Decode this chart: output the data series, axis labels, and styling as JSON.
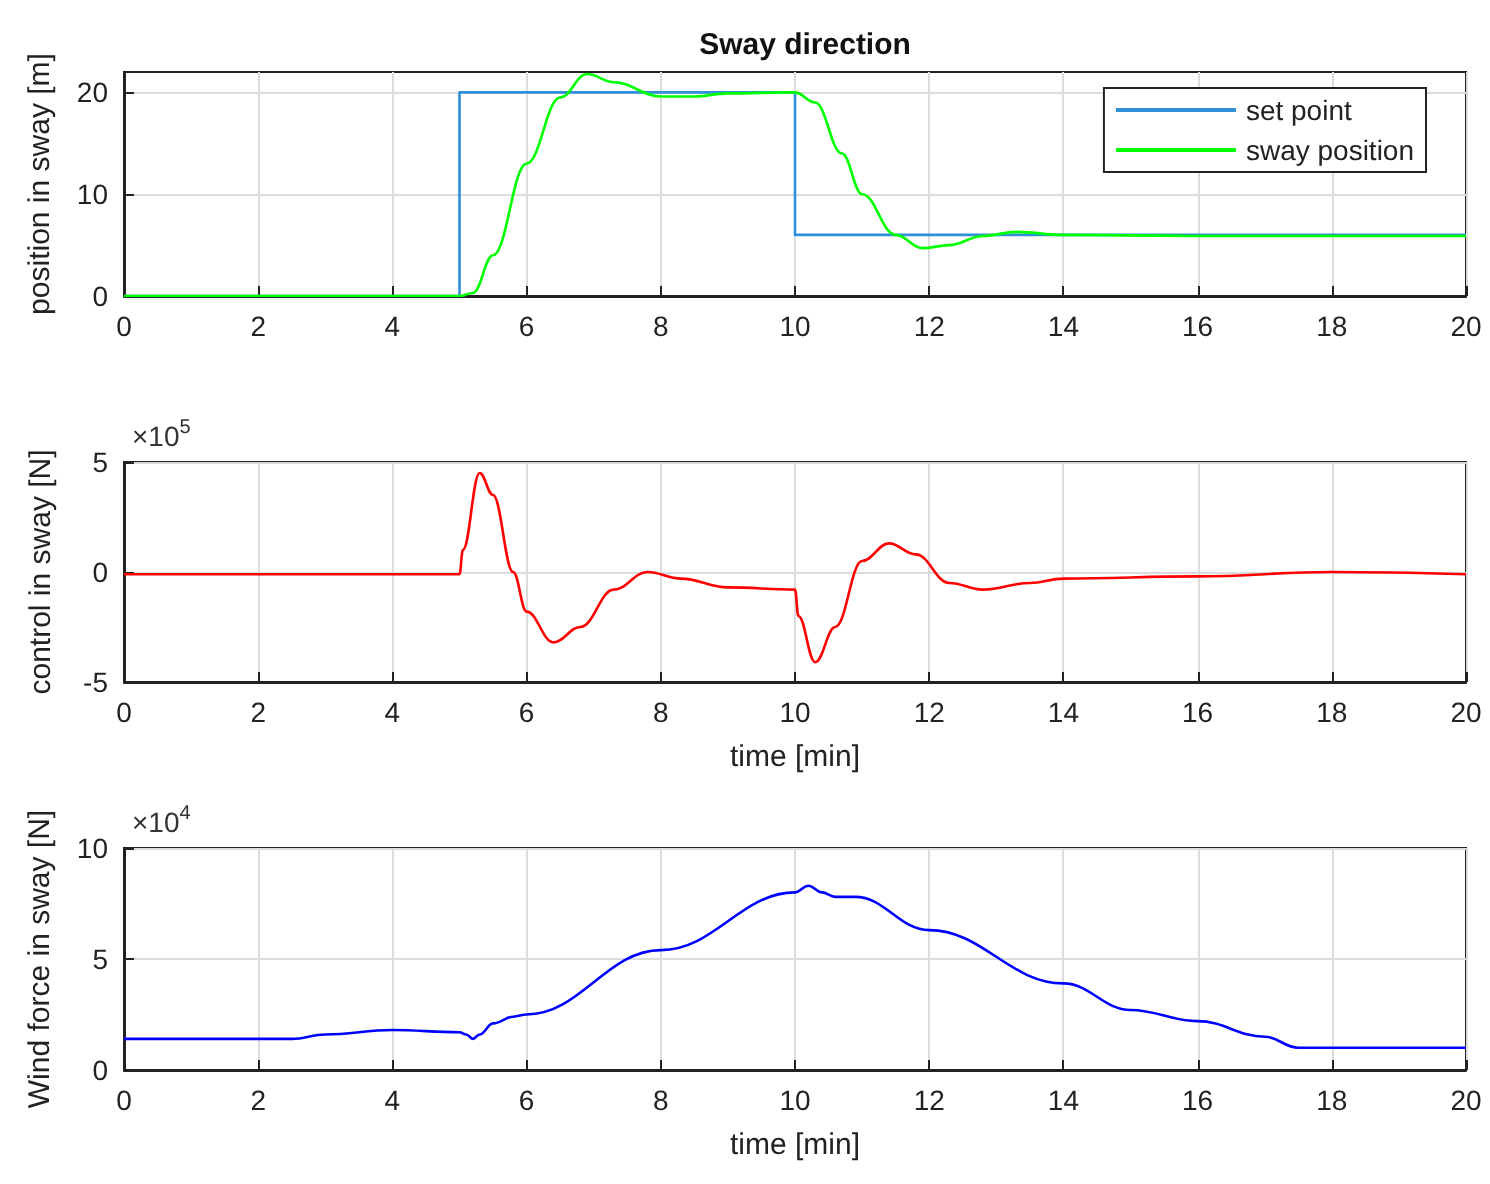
{
  "chart_data": [
    {
      "type": "line",
      "title": "Sway direction",
      "ylabel": "position in sway [m]",
      "xlim": [
        0,
        20
      ],
      "xticks": [
        0,
        2,
        4,
        6,
        8,
        10,
        12,
        14,
        16,
        18,
        20
      ],
      "ylim": [
        0,
        22
      ],
      "yticks": [
        0,
        10,
        20
      ],
      "grid": true,
      "legend": "top right",
      "series": [
        {
          "name": "set point",
          "color": "#2f8fd8",
          "x": [
            0,
            5,
            5,
            10,
            10,
            20
          ],
          "values": [
            0,
            0,
            20,
            20,
            6,
            6
          ]
        },
        {
          "name": "sway position",
          "color": "#00ff00",
          "x": [
            0,
            5,
            5.2,
            5.5,
            6,
            6.5,
            6.9,
            7.3,
            8,
            8.5,
            9,
            10,
            10.3,
            10.7,
            11,
            11.5,
            11.9,
            12.3,
            12.8,
            13.3,
            14,
            16,
            20
          ],
          "values": [
            0,
            0,
            0.3,
            4,
            13,
            19.5,
            21.8,
            21,
            19.6,
            19.6,
            19.9,
            20,
            19,
            14,
            10,
            6,
            4.7,
            5,
            5.9,
            6.3,
            6,
            5.9,
            5.9
          ]
        }
      ]
    },
    {
      "type": "line",
      "xlabel": "time [min]",
      "ylabel": "control in sway [N]",
      "annotations": [
        "×10$^{5}$"
      ],
      "xlim": [
        0,
        20
      ],
      "xticks": [
        0,
        2,
        4,
        6,
        8,
        10,
        12,
        14,
        16,
        18,
        20
      ],
      "ylim": [
        -5,
        5
      ],
      "yticks": [
        -5,
        0,
        5
      ],
      "grid": true,
      "series": [
        {
          "color": "#ff0000",
          "x": [
            0,
            5,
            5.05,
            5.3,
            5.5,
            5.8,
            6,
            6.4,
            6.8,
            7.3,
            7.8,
            8.3,
            9,
            10,
            10.05,
            10.3,
            10.6,
            11,
            11.4,
            11.8,
            12.3,
            12.8,
            13.5,
            14,
            16,
            18,
            20
          ],
          "values": [
            -0.1,
            -0.1,
            1,
            4.5,
            3.5,
            0,
            -1.8,
            -3.2,
            -2.5,
            -0.8,
            0,
            -0.3,
            -0.7,
            -0.8,
            -2,
            -4.1,
            -2.5,
            0.5,
            1.3,
            0.8,
            -0.5,
            -0.8,
            -0.5,
            -0.3,
            -0.2,
            0,
            -0.1
          ]
        }
      ]
    },
    {
      "type": "line",
      "xlabel": "time [min]",
      "ylabel": "Wind force in sway [N]",
      "annotations": [
        "×10$^{4}$"
      ],
      "xlim": [
        0,
        20
      ],
      "xticks": [
        0,
        2,
        4,
        6,
        8,
        10,
        12,
        14,
        16,
        18,
        20
      ],
      "ylim": [
        0,
        10
      ],
      "yticks": [
        0,
        5,
        10
      ],
      "grid": true,
      "series": [
        {
          "color": "#0000ff",
          "x": [
            0,
            2.5,
            3,
            4,
            5,
            5.1,
            5.2,
            5.3,
            5.5,
            5.8,
            6,
            8,
            10,
            10.2,
            10.4,
            10.6,
            10.9,
            12,
            14,
            15,
            16,
            17,
            17.5,
            20
          ],
          "values": [
            1.4,
            1.4,
            1.6,
            1.8,
            1.7,
            1.6,
            1.4,
            1.6,
            2.1,
            2.4,
            2.5,
            5.4,
            8,
            8.3,
            8,
            7.8,
            7.8,
            6.3,
            3.9,
            2.7,
            2.2,
            1.5,
            1,
            1
          ]
        }
      ]
    }
  ]
}
